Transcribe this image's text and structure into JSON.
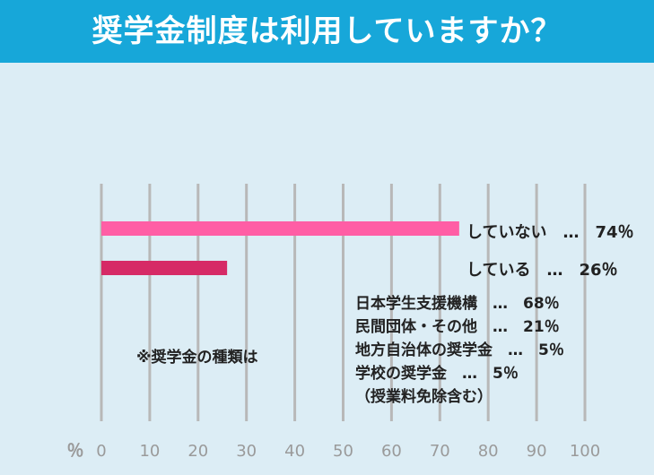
{
  "title": "奨学金制度は利用していますか？",
  "chart_data": {
    "type": "bar",
    "orientation": "horizontal",
    "categories": [
      "していない",
      "している"
    ],
    "values": [
      74,
      26
    ],
    "value_labels": [
      "していない　…　74％",
      "している　…　26％"
    ],
    "colors": [
      "#ff5ea5",
      "#d62a66"
    ],
    "x_unit": "％",
    "xlim": [
      0,
      100
    ],
    "x_ticks": [
      "0",
      "10",
      "20",
      "30",
      "40",
      "50",
      "60",
      "70",
      "80",
      "90",
      "100"
    ],
    "grid": true,
    "note": "※奨学金の種類は",
    "breakdown": [
      "日本学生支援機構　…　68％",
      "民間団体・その他　…　21％",
      "地方自治体の奨学金　…　5％",
      "学校の奨学金　…　5％",
      "（授業料免除含む）"
    ]
  }
}
